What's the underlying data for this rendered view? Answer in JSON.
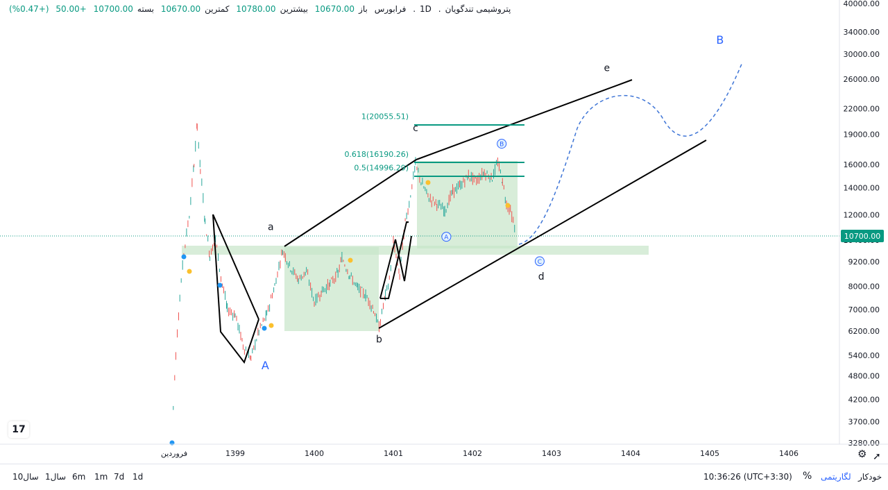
{
  "header": {
    "symbol": "پتروشیمی تندگویان",
    "interval": "1D",
    "exchange": "فرابورس",
    "open_label": "باز",
    "open": "10670.00",
    "high_label": "بیشترین",
    "high": "10780.00",
    "low_label": "کمترین",
    "low": "10670.00",
    "close_label": "بسته",
    "close": "10700.00",
    "change": "+50.00",
    "change_pct": "(+0.47%)"
  },
  "chart_data": {
    "type": "line",
    "scale": "log",
    "y_ticks": [
      "40000.00",
      "34000.00",
      "30000.00",
      "26000.00",
      "22000.00",
      "19000.00",
      "16000.00",
      "14000.00",
      "12000.00",
      "10400.00",
      "9200.00",
      "8000.00",
      "7000.00",
      "6200.00",
      "5400.00",
      "4800.00",
      "4200.00",
      "3700.00",
      "3280.00"
    ],
    "x_ticks": [
      "فروردین",
      "1399",
      "1400",
      "1401",
      "1402",
      "1403",
      "1404",
      "1405",
      "1406"
    ],
    "current_price_label": "10700.00",
    "price_series": [
      {
        "t": 1398.2,
        "v": 3300
      },
      {
        "t": 1398.25,
        "v": 5400
      },
      {
        "t": 1398.3,
        "v": 7500
      },
      {
        "t": 1398.35,
        "v": 9600
      },
      {
        "t": 1398.42,
        "v": 12000
      },
      {
        "t": 1398.48,
        "v": 16000
      },
      {
        "t": 1398.52,
        "v": 20000
      },
      {
        "t": 1398.56,
        "v": 15500
      },
      {
        "t": 1398.62,
        "v": 11500
      },
      {
        "t": 1398.68,
        "v": 9500
      },
      {
        "t": 1398.75,
        "v": 10500
      },
      {
        "t": 1398.82,
        "v": 8400
      },
      {
        "t": 1398.9,
        "v": 7000
      },
      {
        "t": 1399.0,
        "v": 6800
      },
      {
        "t": 1399.1,
        "v": 5700
      },
      {
        "t": 1399.2,
        "v": 5300
      },
      {
        "t": 1399.3,
        "v": 6200
      },
      {
        "t": 1399.4,
        "v": 6800
      },
      {
        "t": 1399.5,
        "v": 8000
      },
      {
        "t": 1399.6,
        "v": 9800
      },
      {
        "t": 1399.7,
        "v": 8900
      },
      {
        "t": 1399.8,
        "v": 8300
      },
      {
        "t": 1399.9,
        "v": 8700
      },
      {
        "t": 1400.0,
        "v": 7300
      },
      {
        "t": 1400.1,
        "v": 7800
      },
      {
        "t": 1400.2,
        "v": 8100
      },
      {
        "t": 1400.3,
        "v": 8600
      },
      {
        "t": 1400.35,
        "v": 9400
      },
      {
        "t": 1400.45,
        "v": 8500
      },
      {
        "t": 1400.55,
        "v": 7900
      },
      {
        "t": 1400.65,
        "v": 7600
      },
      {
        "t": 1400.75,
        "v": 7000
      },
      {
        "t": 1400.82,
        "v": 6300
      },
      {
        "t": 1400.9,
        "v": 7600
      },
      {
        "t": 1400.95,
        "v": 8300
      },
      {
        "t": 1401.0,
        "v": 10300
      },
      {
        "t": 1401.08,
        "v": 8500
      },
      {
        "t": 1401.15,
        "v": 11500
      },
      {
        "t": 1401.2,
        "v": 12800
      },
      {
        "t": 1401.28,
        "v": 16000
      },
      {
        "t": 1401.35,
        "v": 14500
      },
      {
        "t": 1401.45,
        "v": 13200
      },
      {
        "t": 1401.55,
        "v": 12800
      },
      {
        "t": 1401.65,
        "v": 12300
      },
      {
        "t": 1401.75,
        "v": 13700
      },
      {
        "t": 1401.85,
        "v": 14200
      },
      {
        "t": 1401.95,
        "v": 15000
      },
      {
        "t": 1402.05,
        "v": 14600
      },
      {
        "t": 1402.15,
        "v": 15300
      },
      {
        "t": 1402.25,
        "v": 14800
      },
      {
        "t": 1402.32,
        "v": 16200
      },
      {
        "t": 1402.38,
        "v": 14500
      },
      {
        "t": 1402.43,
        "v": 12800
      },
      {
        "t": 1402.48,
        "v": 12300
      },
      {
        "t": 1402.55,
        "v": 10700
      }
    ],
    "fib_levels": [
      {
        "label": "1(20055.51)",
        "value": 20055.51
      },
      {
        "label": "0.618(16190.26)",
        "value": 16190.26
      },
      {
        "label": "0.5(14996.29)",
        "value": 14996.29
      }
    ],
    "wave_labels": [
      {
        "text": "A",
        "t": 1399.38,
        "v": 4990,
        "style": "blue"
      },
      {
        "text": "B",
        "t": 1405.13,
        "v": 31800,
        "style": "blue"
      },
      {
        "text": "a",
        "t": 1399.45,
        "v": 11000,
        "style": "black"
      },
      {
        "text": "b",
        "t": 1400.82,
        "v": 5800,
        "style": "black"
      },
      {
        "text": "c",
        "t": 1401.28,
        "v": 19350,
        "style": "black"
      },
      {
        "text": "d",
        "t": 1402.87,
        "v": 8300,
        "style": "black"
      },
      {
        "text": "e",
        "t": 1403.7,
        "v": 27200,
        "style": "black"
      },
      {
        "text": "A",
        "t": 1401.67,
        "v": 10600,
        "style": "circle"
      },
      {
        "text": "B",
        "t": 1402.37,
        "v": 18000,
        "style": "circle"
      },
      {
        "text": "C",
        "t": 1402.85,
        "v": 9220,
        "style": "circle"
      }
    ]
  },
  "bottom_bar": {
    "timeframes": [
      "1d",
      "7d",
      "1m",
      "6m",
      "1سال",
      "10سال"
    ],
    "time": "10:36:26 (UTC+3:30)",
    "percent": "%",
    "log": "لگاریتمی",
    "auto": "خودکار"
  },
  "colors": {
    "up": "#26a69a",
    "down": "#ef5350",
    "box_fill": "#c8e6c9",
    "fib": "#089981",
    "wave_blue": "#2962ff",
    "projection": "#3d74d6"
  },
  "icons": [
    "tradingview-logo-icon",
    "gear-icon",
    "cursor-icon"
  ]
}
